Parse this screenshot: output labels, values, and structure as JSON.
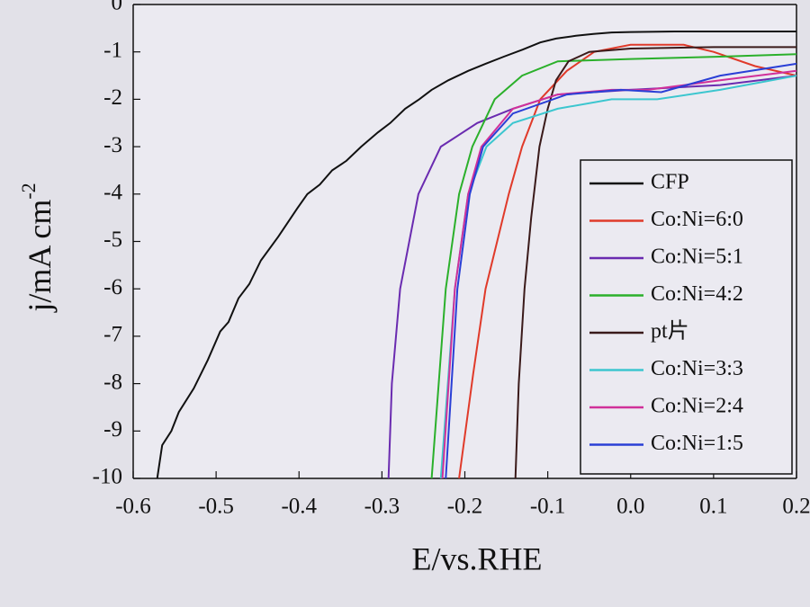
{
  "chart_data": {
    "type": "line",
    "x_label": "E/vs.RHE",
    "y_label": "j/mA cm",
    "y_label_sup": "-2",
    "xlim": [
      -0.6,
      0.2
    ],
    "ylim": [
      -10,
      0
    ],
    "xticks": [
      -0.6,
      -0.5,
      -0.4,
      -0.3,
      -0.2,
      -0.1,
      {
        "value": 0,
        "label": "0.0"
      },
      0.1,
      0.2
    ],
    "yticks": [
      0,
      -1,
      -2,
      -3,
      -4,
      -5,
      -6,
      -7,
      -8,
      -9,
      -10
    ],
    "legend": "right",
    "series": [
      {
        "name": "CFP",
        "color": "#111111",
        "x": [
          -0.571,
          -0.565,
          -0.554,
          -0.545,
          -0.527,
          -0.51,
          -0.495,
          -0.485,
          -0.473,
          -0.46,
          -0.446,
          -0.425,
          -0.402,
          -0.39,
          -0.375,
          -0.36,
          -0.343,
          -0.325,
          -0.305,
          -0.29,
          -0.272,
          -0.255,
          -0.24,
          -0.22,
          -0.196,
          -0.175,
          -0.153,
          -0.13,
          -0.109,
          -0.09,
          -0.066,
          -0.045,
          -0.023,
          0.0,
          0.053,
          0.12,
          0.2
        ],
        "values": [
          -10,
          -9.3,
          -9.0,
          -8.6,
          -8.1,
          -7.5,
          -6.9,
          -6.7,
          -6.2,
          -5.9,
          -5.4,
          -4.9,
          -4.3,
          -4.0,
          -3.8,
          -3.5,
          -3.3,
          -3.0,
          -2.7,
          -2.5,
          -2.2,
          -2.0,
          -1.8,
          -1.6,
          -1.4,
          -1.25,
          -1.1,
          -0.95,
          -0.8,
          -0.72,
          -0.66,
          -0.62,
          -0.59,
          -0.58,
          -0.57,
          -0.57,
          -0.57
        ]
      },
      {
        "name": "Co:Ni=6:0",
        "color": "#e03a2a",
        "x": [
          -0.207,
          -0.19,
          -0.175,
          -0.147,
          -0.131,
          -0.109,
          -0.077,
          -0.044,
          0.0,
          0.064,
          0.1,
          0.15,
          0.2
        ],
        "values": [
          -10,
          -7.8,
          -6,
          -4,
          -3,
          -2,
          -1.4,
          -1.0,
          -0.85,
          -0.85,
          -1.0,
          -1.3,
          -1.5
        ]
      },
      {
        "name": "Co:Ni=5:1",
        "color": "#6a2bb0",
        "x": [
          -0.292,
          -0.288,
          -0.278,
          -0.256,
          -0.229,
          -0.185,
          -0.142,
          -0.088,
          0.0,
          0.108,
          0.2
        ],
        "values": [
          -10,
          -8,
          -6,
          -4,
          -3,
          -2.5,
          -2.2,
          -1.9,
          -1.8,
          -1.7,
          -1.5
        ]
      },
      {
        "name": "Co:Ni=4:2",
        "color": "#2bb02b",
        "x": [
          -0.24,
          -0.223,
          -0.207,
          -0.191,
          -0.164,
          -0.131,
          -0.088,
          0.0,
          0.108,
          0.2
        ],
        "values": [
          -10,
          -6,
          -4,
          -3,
          -2,
          -1.5,
          -1.2,
          -1.15,
          -1.1,
          -1.05
        ]
      },
      {
        "name": "pt片",
        "color": "#3a1a1a",
        "x": [
          -0.139,
          -0.135,
          -0.128,
          -0.12,
          -0.11,
          -0.1,
          -0.09,
          -0.075,
          -0.05,
          0.0,
          0.1,
          0.2
        ],
        "values": [
          -10,
          -8,
          -6,
          -4.5,
          -3,
          -2.2,
          -1.6,
          -1.2,
          -1.0,
          -0.93,
          -0.9,
          -0.9
        ]
      },
      {
        "name": "Co:Ni=3:3",
        "color": "#3cc6cf",
        "x": [
          -0.229,
          -0.212,
          -0.196,
          -0.174,
          -0.142,
          -0.088,
          -0.023,
          0.032,
          0.108,
          0.2
        ],
        "values": [
          -10,
          -6,
          -4,
          -3,
          -2.5,
          -2.2,
          -2.0,
          -2.0,
          -1.8,
          -1.5
        ]
      },
      {
        "name": "Co:Ni=2:4",
        "color": "#d0309a",
        "x": [
          -0.227,
          -0.212,
          -0.196,
          -0.18,
          -0.142,
          -0.088,
          -0.023,
          0.021,
          0.108,
          0.2
        ],
        "values": [
          -10,
          -6,
          -4,
          -3,
          -2.2,
          -1.9,
          -1.8,
          -1.8,
          -1.6,
          -1.4
        ]
      },
      {
        "name": "Co:Ni=1:5",
        "color": "#2a3fd6",
        "x": [
          -0.223,
          -0.209,
          -0.194,
          -0.178,
          -0.142,
          -0.077,
          -0.012,
          0.037,
          0.108,
          0.2
        ],
        "values": [
          -10,
          -6,
          -4,
          -3,
          -2.3,
          -1.9,
          -1.8,
          -1.85,
          -1.5,
          -1.25
        ]
      }
    ]
  }
}
